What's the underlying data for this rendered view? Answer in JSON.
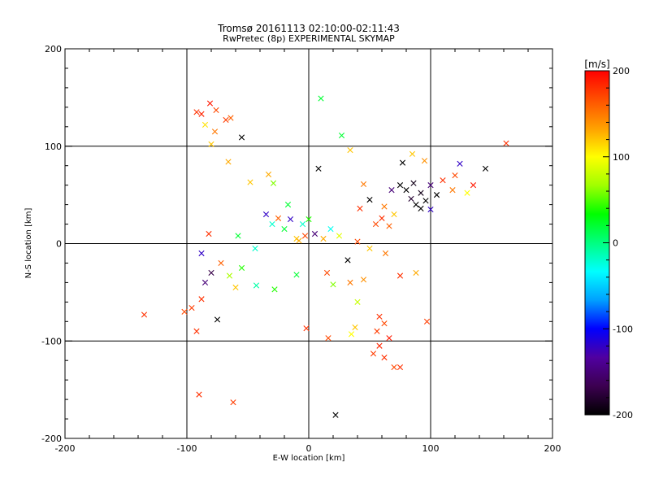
{
  "chart_data": {
    "type": "scatter",
    "title": "Tromsø 20161113 02:10:00-02:11:43",
    "subtitle": "RwPretec (8p) EXPERIMENTAL SKYMAP",
    "xlabel": "E-W location [km]",
    "ylabel": "N-S location [km]",
    "xlim": [
      -200,
      200
    ],
    "ylim": [
      -200,
      200
    ],
    "xticks": [
      "-200",
      "-100",
      "0",
      "100",
      "200"
    ],
    "yticks": [
      "-200",
      "-100",
      "0",
      "100",
      "200"
    ],
    "grid": "major lines at -100, 0, 100",
    "colorbar": {
      "label": "[m/s]",
      "range": [
        -200,
        200
      ],
      "ticks": [
        "200",
        "100",
        "0",
        "-100",
        "-200"
      ],
      "colors": [
        "#000000",
        "#3c0050",
        "#5000a0",
        "#0000ff",
        "#00a0ff",
        "#00ffff",
        "#00ff80",
        "#00ff00",
        "#a0ff00",
        "#ffff00",
        "#ffa000",
        "#ff5000",
        "#ff0000"
      ]
    },
    "markers": {
      "small": "dot",
      "large": "x"
    },
    "points": [
      {
        "x": -92,
        "y": 135,
        "v": 180,
        "m": "x"
      },
      {
        "x": -88,
        "y": 133,
        "v": 185,
        "m": "x"
      },
      {
        "x": -81,
        "y": 144,
        "v": 190,
        "m": "x"
      },
      {
        "x": -76,
        "y": 137,
        "v": 170,
        "m": "x"
      },
      {
        "x": -68,
        "y": 127,
        "v": 175,
        "m": "x"
      },
      {
        "x": -64,
        "y": 129,
        "v": 160,
        "m": "x"
      },
      {
        "x": -85,
        "y": 122,
        "v": 110,
        "m": "x"
      },
      {
        "x": -77,
        "y": 115,
        "v": 150,
        "m": "x"
      },
      {
        "x": -80,
        "y": 102,
        "v": 120,
        "m": "x"
      },
      {
        "x": -66,
        "y": 84,
        "v": 130,
        "m": "x"
      },
      {
        "x": -55,
        "y": 109,
        "v": -200,
        "m": "x"
      },
      {
        "x": -48,
        "y": 63,
        "v": 120,
        "m": "x"
      },
      {
        "x": -33,
        "y": 71,
        "v": 130,
        "m": "x"
      },
      {
        "x": -29,
        "y": 62,
        "v": 60,
        "m": "x"
      },
      {
        "x": 8,
        "y": 77,
        "v": -200,
        "m": "x"
      },
      {
        "x": 10,
        "y": 149,
        "v": 20,
        "m": "x"
      },
      {
        "x": 27,
        "y": 111,
        "v": 20,
        "m": "x"
      },
      {
        "x": 34,
        "y": 96,
        "v": 120,
        "m": "x"
      },
      {
        "x": 45,
        "y": 61,
        "v": 150,
        "m": "x"
      },
      {
        "x": 60,
        "y": 26,
        "v": 180,
        "m": "x"
      },
      {
        "x": 55,
        "y": 20,
        "v": 170,
        "m": "x"
      },
      {
        "x": 66,
        "y": 18,
        "v": 160,
        "m": "x"
      },
      {
        "x": 80,
        "y": 55,
        "v": -200,
        "m": "x"
      },
      {
        "x": 84,
        "y": 46,
        "v": -180,
        "m": "x"
      },
      {
        "x": 88,
        "y": 40,
        "v": -200,
        "m": "x"
      },
      {
        "x": 92,
        "y": 52,
        "v": -190,
        "m": "x"
      },
      {
        "x": 96,
        "y": 44,
        "v": -200,
        "m": "x"
      },
      {
        "x": 100,
        "y": 60,
        "v": -150,
        "m": "x"
      },
      {
        "x": 105,
        "y": 50,
        "v": -200,
        "m": "x"
      },
      {
        "x": 75,
        "y": 60,
        "v": -200,
        "m": "x"
      },
      {
        "x": 86,
        "y": 62,
        "v": -190,
        "m": "x"
      },
      {
        "x": 92,
        "y": 36,
        "v": -200,
        "m": "x"
      },
      {
        "x": 110,
        "y": 65,
        "v": 180,
        "m": "x"
      },
      {
        "x": 120,
        "y": 70,
        "v": 170,
        "m": "x"
      },
      {
        "x": 124,
        "y": 82,
        "v": -120,
        "m": "x"
      },
      {
        "x": 118,
        "y": 55,
        "v": 150,
        "m": "x"
      },
      {
        "x": 135,
        "y": 60,
        "v": 190,
        "m": "x"
      },
      {
        "x": 145,
        "y": 77,
        "v": -200,
        "m": "x"
      },
      {
        "x": 162,
        "y": 103,
        "v": 180,
        "m": "x"
      },
      {
        "x": 95,
        "y": 85,
        "v": 140,
        "m": "x"
      },
      {
        "x": 85,
        "y": 92,
        "v": 120,
        "m": "x"
      },
      {
        "x": 77,
        "y": 83,
        "v": -200,
        "m": "x"
      },
      {
        "x": 130,
        "y": 52,
        "v": 100,
        "m": "x"
      },
      {
        "x": 100,
        "y": 35,
        "v": -120,
        "m": "x"
      },
      {
        "x": -88,
        "y": -57,
        "v": 180,
        "m": "x"
      },
      {
        "x": -96,
        "y": -66,
        "v": 175,
        "m": "x"
      },
      {
        "x": -102,
        "y": -70,
        "v": 170,
        "m": "x"
      },
      {
        "x": -135,
        "y": -73,
        "v": 180,
        "m": "x"
      },
      {
        "x": -85,
        "y": -40,
        "v": -150,
        "m": "x"
      },
      {
        "x": -80,
        "y": -30,
        "v": -170,
        "m": "x"
      },
      {
        "x": -88,
        "y": -10,
        "v": -120,
        "m": "x"
      },
      {
        "x": -72,
        "y": -20,
        "v": 160,
        "m": "x"
      },
      {
        "x": -65,
        "y": -33,
        "v": 70,
        "m": "x"
      },
      {
        "x": -60,
        "y": -45,
        "v": 120,
        "m": "x"
      },
      {
        "x": -55,
        "y": -25,
        "v": 40,
        "m": "x"
      },
      {
        "x": -43,
        "y": -43,
        "v": -10,
        "m": "x"
      },
      {
        "x": -44,
        "y": -5,
        "v": -20,
        "m": "x"
      },
      {
        "x": -58,
        "y": 8,
        "v": 20,
        "m": "x"
      },
      {
        "x": -82,
        "y": 10,
        "v": 180,
        "m": "x"
      },
      {
        "x": -90,
        "y": -155,
        "v": 180,
        "m": "x"
      },
      {
        "x": -62,
        "y": -163,
        "v": 175,
        "m": "x"
      },
      {
        "x": -75,
        "y": -78,
        "v": -200,
        "m": "x"
      },
      {
        "x": -92,
        "y": -90,
        "v": 180,
        "m": "x"
      },
      {
        "x": -30,
        "y": 20,
        "v": -20,
        "m": "x"
      },
      {
        "x": -25,
        "y": 26,
        "v": 160,
        "m": "x"
      },
      {
        "x": -20,
        "y": 15,
        "v": 20,
        "m": "x"
      },
      {
        "x": -15,
        "y": 25,
        "v": -120,
        "m": "x"
      },
      {
        "x": -10,
        "y": 5,
        "v": 120,
        "m": "x"
      },
      {
        "x": -5,
        "y": 20,
        "v": -20,
        "m": "x"
      },
      {
        "x": 0,
        "y": 25,
        "v": 40,
        "m": "x"
      },
      {
        "x": 5,
        "y": 10,
        "v": -150,
        "m": "x"
      },
      {
        "x": 12,
        "y": 5,
        "v": 130,
        "m": "x"
      },
      {
        "x": 18,
        "y": 15,
        "v": -30,
        "m": "x"
      },
      {
        "x": -28,
        "y": -47,
        "v": 40,
        "m": "x"
      },
      {
        "x": -10,
        "y": -32,
        "v": 20,
        "m": "x"
      },
      {
        "x": 15,
        "y": -30,
        "v": 170,
        "m": "x"
      },
      {
        "x": 20,
        "y": -42,
        "v": 60,
        "m": "x"
      },
      {
        "x": 32,
        "y": -17,
        "v": -200,
        "m": "x"
      },
      {
        "x": 34,
        "y": -40,
        "v": 150,
        "m": "x"
      },
      {
        "x": 40,
        "y": -60,
        "v": 80,
        "m": "x"
      },
      {
        "x": 45,
        "y": -37,
        "v": 140,
        "m": "x"
      },
      {
        "x": -2,
        "y": -87,
        "v": 180,
        "m": "x"
      },
      {
        "x": 16,
        "y": -97,
        "v": 170,
        "m": "x"
      },
      {
        "x": 22,
        "y": -176,
        "v": -200,
        "m": "x"
      },
      {
        "x": 38,
        "y": -86,
        "v": 120,
        "m": "x"
      },
      {
        "x": 35,
        "y": -93,
        "v": 100,
        "m": "x"
      },
      {
        "x": 58,
        "y": -75,
        "v": 180,
        "m": "x"
      },
      {
        "x": 62,
        "y": -82,
        "v": 170,
        "m": "x"
      },
      {
        "x": 56,
        "y": -90,
        "v": 175,
        "m": "x"
      },
      {
        "x": 58,
        "y": -105,
        "v": 185,
        "m": "x"
      },
      {
        "x": 66,
        "y": -97,
        "v": 190,
        "m": "x"
      },
      {
        "x": 53,
        "y": -113,
        "v": 175,
        "m": "x"
      },
      {
        "x": 62,
        "y": -117,
        "v": 180,
        "m": "x"
      },
      {
        "x": 70,
        "y": -127,
        "v": 170,
        "m": "x"
      },
      {
        "x": 75,
        "y": -127,
        "v": 180,
        "m": "x"
      },
      {
        "x": 97,
        "y": -80,
        "v": 175,
        "m": "x"
      },
      {
        "x": 88,
        "y": -30,
        "v": 130,
        "m": "x"
      },
      {
        "x": 75,
        "y": -33,
        "v": 180,
        "m": "x"
      },
      {
        "x": 63,
        "y": -10,
        "v": 150,
        "m": "x"
      },
      {
        "x": 40,
        "y": 2,
        "v": 170,
        "m": "x"
      },
      {
        "x": 50,
        "y": -5,
        "v": 120,
        "m": "x"
      },
      {
        "x": 25,
        "y": 8,
        "v": 90,
        "m": "x"
      },
      {
        "x": 42,
        "y": 36,
        "v": 180,
        "m": "x"
      },
      {
        "x": 50,
        "y": 45,
        "v": -200,
        "m": "x"
      },
      {
        "x": 62,
        "y": 38,
        "v": 150,
        "m": "x"
      },
      {
        "x": 70,
        "y": 30,
        "v": 120,
        "m": "x"
      },
      {
        "x": 68,
        "y": 55,
        "v": -150,
        "m": "x"
      },
      {
        "x": -8,
        "y": 3,
        "v": 130,
        "m": "x"
      },
      {
        "x": -3,
        "y": 8,
        "v": 170,
        "m": "x"
      },
      {
        "x": -17,
        "y": 40,
        "v": 20,
        "m": "x"
      },
      {
        "x": -35,
        "y": 30,
        "v": -120,
        "m": "x"
      }
    ]
  }
}
